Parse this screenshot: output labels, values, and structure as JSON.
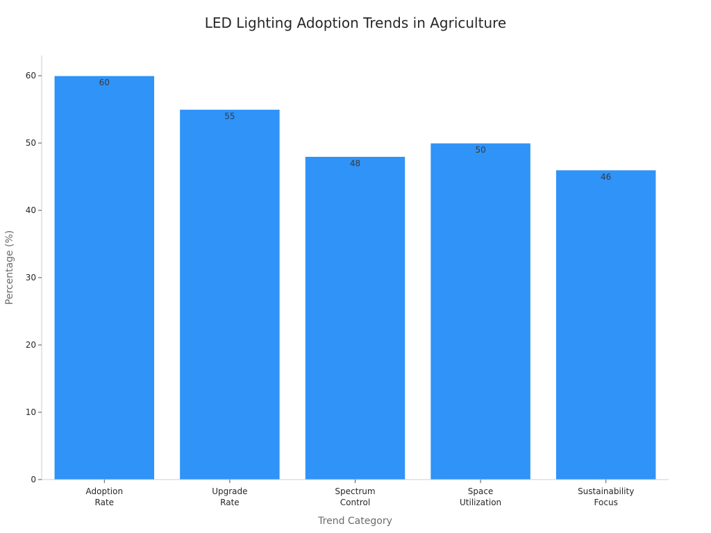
{
  "chart_data": {
    "type": "bar",
    "title": "LED Lighting Adoption Trends in Agriculture",
    "xlabel": "Trend Category",
    "ylabel": "Percentage (%)",
    "categories": [
      [
        "Adoption",
        "Rate"
      ],
      [
        "Upgrade",
        "Rate"
      ],
      [
        "Spectrum",
        "Control"
      ],
      [
        "Space",
        "Utilization"
      ],
      [
        "Sustainability",
        "Focus"
      ]
    ],
    "values": [
      60,
      55,
      48,
      50,
      46
    ],
    "data_labels": [
      "60",
      "55",
      "48",
      "50",
      "46"
    ],
    "ylim": [
      0,
      63
    ],
    "yticks": [
      0,
      10,
      20,
      30,
      40,
      50,
      60
    ],
    "ytick_labels": [
      "0",
      "10",
      "20",
      "30",
      "40",
      "50",
      "60"
    ],
    "bar_color": "#2f93f8",
    "grid": false,
    "legend": "none"
  }
}
